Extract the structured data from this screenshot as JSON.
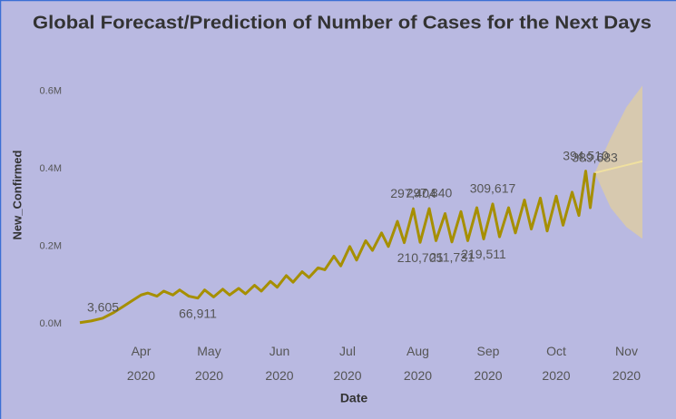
{
  "chart_data": {
    "type": "line",
    "title": "Global Forecast/Prediction of Number of Cases for the Next Days",
    "x_label": "Date",
    "y_label": "New_Confirmed",
    "color": "#a68f00",
    "x": [
      "2020-03-05",
      "2020-03-10",
      "2020-03-15",
      "2020-03-20",
      "2020-03-24",
      "2020-03-28",
      "2020-04-01",
      "2020-04-04",
      "2020-04-08",
      "2020-04-11",
      "2020-04-15",
      "2020-04-18",
      "2020-04-22",
      "2020-04-26",
      "2020-04-29",
      "2020-05-03",
      "2020-05-07",
      "2020-05-10",
      "2020-05-14",
      "2020-05-17",
      "2020-05-21",
      "2020-05-24",
      "2020-05-28",
      "2020-05-31",
      "2020-06-04",
      "2020-06-07",
      "2020-06-11",
      "2020-06-14",
      "2020-06-18",
      "2020-06-21",
      "2020-06-25",
      "2020-06-28",
      "2020-07-02",
      "2020-07-05",
      "2020-07-09",
      "2020-07-12",
      "2020-07-16",
      "2020-07-19",
      "2020-07-23",
      "2020-07-26",
      "2020-07-30",
      "2020-08-02",
      "2020-08-06",
      "2020-08-09",
      "2020-08-13",
      "2020-08-16",
      "2020-08-20",
      "2020-08-23",
      "2020-08-27",
      "2020-08-30",
      "2020-09-03",
      "2020-09-06",
      "2020-09-10",
      "2020-09-13",
      "2020-09-17",
      "2020-09-20",
      "2020-09-24",
      "2020-09-27",
      "2020-10-01",
      "2020-10-04",
      "2020-10-08",
      "2020-10-11",
      "2020-10-14",
      "2020-10-16",
      "2020-10-18"
    ],
    "values": [
      3605,
      8000,
      15000,
      30000,
      45000,
      60000,
      75000,
      80000,
      72000,
      85000,
      75000,
      88000,
      72000,
      66911,
      88000,
      70000,
      90000,
      75000,
      92000,
      78000,
      100000,
      85000,
      110000,
      95000,
      125000,
      108000,
      135000,
      120000,
      145000,
      140000,
      175000,
      150000,
      200000,
      165000,
      215000,
      190000,
      235000,
      200000,
      265000,
      210000,
      297404,
      210705,
      297840,
      215000,
      285000,
      211731,
      290000,
      215000,
      300000,
      219511,
      309617,
      225000,
      300000,
      235000,
      320000,
      245000,
      325000,
      240000,
      330000,
      255000,
      340000,
      280000,
      394510,
      300000,
      389683
    ],
    "value_labels": [
      "3,605",
      null,
      null,
      null,
      null,
      null,
      null,
      null,
      null,
      null,
      null,
      null,
      null,
      "66,911",
      null,
      null,
      null,
      null,
      null,
      null,
      null,
      null,
      null,
      null,
      null,
      null,
      null,
      null,
      null,
      null,
      null,
      null,
      null,
      null,
      null,
      null,
      null,
      null,
      null,
      null,
      "297,404",
      "210,705",
      "297,840",
      null,
      null,
      "211,731",
      null,
      null,
      null,
      "219,511",
      "309,617",
      null,
      null,
      null,
      null,
      null,
      null,
      null,
      null,
      null,
      null,
      null,
      "394,510",
      null,
      "389,683"
    ],
    "forecast": {
      "color": "#f0e0a0",
      "band_color": "#dccba6",
      "x": [
        "2020-10-18",
        "2020-10-25",
        "2020-11-01",
        "2020-11-08"
      ],
      "values": [
        390000,
        400000,
        410000,
        420000
      ],
      "upper": [
        390000,
        480000,
        560000,
        615000
      ],
      "lower": [
        390000,
        300000,
        250000,
        220000
      ]
    },
    "xlim": [
      "2020-03-01",
      "2020-11-12"
    ],
    "xticks": [
      {
        "value": "2020-04-01",
        "label": "Apr 2020"
      },
      {
        "value": "2020-05-01",
        "label": "May 2020"
      },
      {
        "value": "2020-06-01",
        "label": "Jun 2020"
      },
      {
        "value": "2020-07-01",
        "label": "Jul 2020"
      },
      {
        "value": "2020-08-01",
        "label": "Aug 2020"
      },
      {
        "value": "2020-09-01",
        "label": "Sep 2020"
      },
      {
        "value": "2020-10-01",
        "label": "Oct 2020"
      },
      {
        "value": "2020-11-01",
        "label": "Nov 2020"
      }
    ],
    "ylim": [
      -25000,
      630000
    ],
    "yticks": [
      {
        "value": 0,
        "label": "0.0M"
      },
      {
        "value": 200000,
        "label": "0.2M"
      },
      {
        "value": 400000,
        "label": "0.4M"
      },
      {
        "value": 600000,
        "label": "0.6M"
      }
    ],
    "grid": false
  }
}
